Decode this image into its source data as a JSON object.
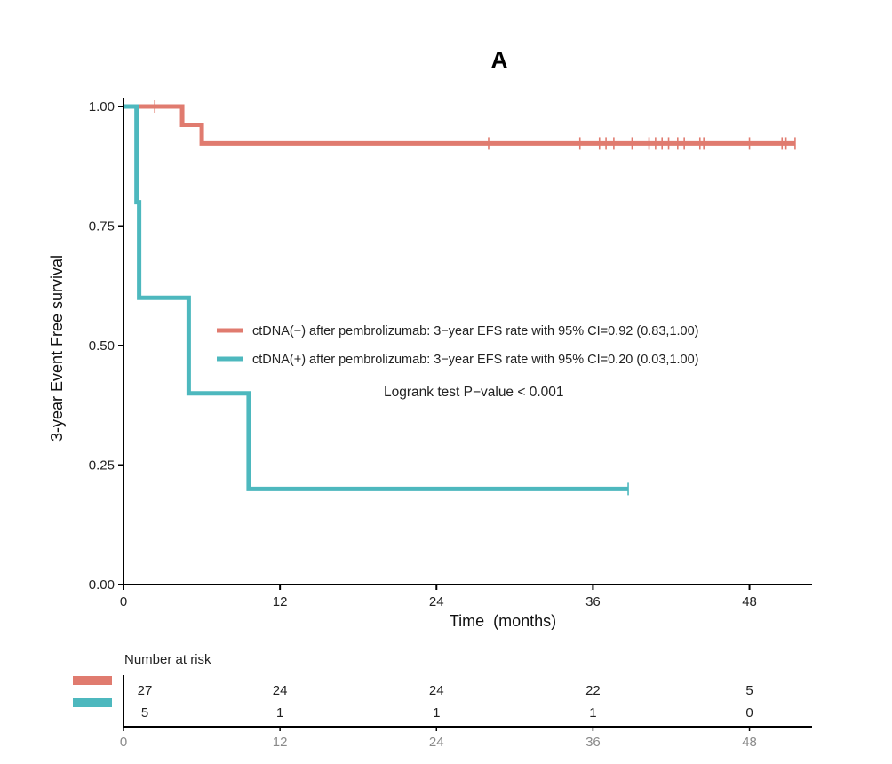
{
  "chart_data": {
    "type": "line",
    "subtype": "kaplan-meier",
    "title": "A",
    "xlabel": "Time  (months)",
    "ylabel": "3-year Event Free survival",
    "xlim": [
      0,
      52.8
    ],
    "ylim": [
      0,
      1.0
    ],
    "xticks": [
      0,
      12,
      24,
      36,
      48
    ],
    "yticks": [
      0.0,
      0.25,
      0.5,
      0.75,
      1.0
    ],
    "ytick_labels": [
      "0.00",
      "0.25",
      "0.50",
      "0.75",
      "1.00"
    ],
    "series": [
      {
        "name": "ctDNA(−) after pembrolizumab: 3−year EFS rate with 95% CI=0.92 (0.83,1.00)",
        "color": "#E07B6F",
        "steps": [
          [
            0,
            1.0
          ],
          [
            4.5,
            0.962
          ],
          [
            6.0,
            0.923
          ],
          [
            51.5,
            0.923
          ]
        ],
        "censored": [
          2.4,
          28.0,
          35.0,
          36.5,
          37.0,
          37.6,
          39.0,
          40.3,
          40.8,
          41.3,
          41.8,
          42.5,
          43.0,
          44.2,
          44.5,
          48.0,
          50.5,
          50.8,
          51.5
        ]
      },
      {
        "name": "ctDNA(+) after pembrolizumab: 3−year EFS rate with 95% CI=0.20 (0.03,1.00)",
        "color": "#4DB8BE",
        "steps": [
          [
            0,
            1.0
          ],
          [
            1.0,
            0.8
          ],
          [
            1.2,
            0.6
          ],
          [
            5.0,
            0.4
          ],
          [
            9.6,
            0.2
          ],
          [
            38.7,
            0.2
          ]
        ],
        "censored": [
          38.7
        ]
      }
    ],
    "annotation": "Logrank test P−value < 0.001",
    "risk_table": {
      "title": "Number at risk",
      "times": [
        0,
        12,
        24,
        36,
        48
      ],
      "rows": [
        {
          "color": "#E07B6F",
          "counts": [
            27,
            24,
            24,
            22,
            5
          ]
        },
        {
          "color": "#4DB8BE",
          "counts": [
            5,
            1,
            1,
            1,
            0
          ]
        }
      ]
    }
  }
}
